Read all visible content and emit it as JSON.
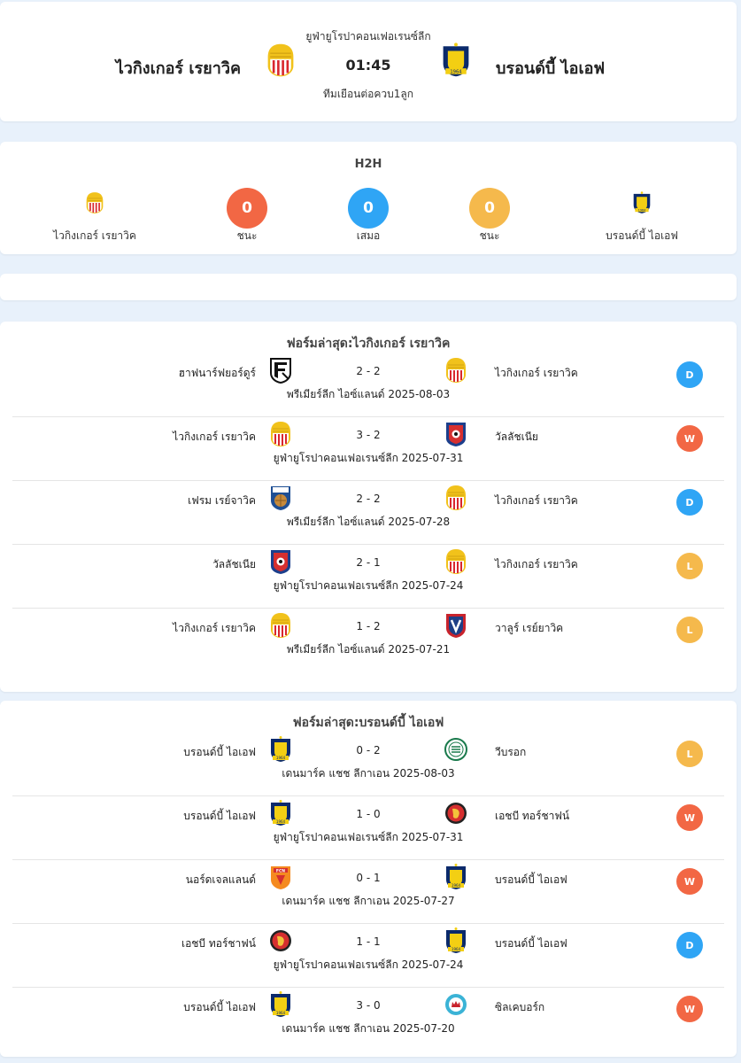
{
  "colors": {
    "win": "#f26744",
    "draw": "#2fa5f5",
    "loss": "#f5b94c",
    "text": "#222222",
    "bg": "#e8f1fb"
  },
  "match": {
    "league": "ยูฟ่ายูโรปาคอนเฟอเรนซ์ลีก",
    "home_team": "ไวกิงเกอร์ เรยาวิค",
    "away_team": "บรอนด์บี้ ไอเอฟ",
    "time": "01:45",
    "note": "ทีมเยือนต่อควบ1ลูก"
  },
  "h2h": {
    "title": "H2H",
    "home_team": "ไวกิงเกอร์ เรยาวิค",
    "away_team": "บรอนด์บี้ ไอเอฟ",
    "home_wins": "0",
    "home_wins_label": "ชนะ",
    "draws": "0",
    "draws_label": "เสมอ",
    "away_wins": "0",
    "away_wins_label": "ชนะ"
  },
  "form_home": {
    "title": "ฟอร์มล่าสุด:ไวกิงเกอร์ เรยาวิค",
    "rows": [
      {
        "home": "ฮาฟนาร์ฟยอร์ดูร์",
        "home_logo": "fh-badge-icon",
        "score": "2 - 2",
        "away": "ไวกิงเกอร์ เรยาวิค",
        "away_logo": "vikingur-badge-icon",
        "meta": "พรีเมียร์ลีก ไอซ์แลนด์ 2025-08-03",
        "result": "D"
      },
      {
        "home": "ไวกิงเกอร์ เรยาวิค",
        "home_logo": "vikingur-badge-icon",
        "score": "3 - 2",
        "away": "วัลลัชเนีย",
        "away_logo": "vllaznia-badge-icon",
        "meta": "ยูฟ่ายูโรปาคอนเฟอเรนซ์ลีก 2025-07-31",
        "result": "W"
      },
      {
        "home": "เฟรม เรย์จาวิค",
        "home_logo": "fram-badge-icon",
        "score": "2 - 2",
        "away": "ไวกิงเกอร์ เรยาวิค",
        "away_logo": "vikingur-badge-icon",
        "meta": "พรีเมียร์ลีก ไอซ์แลนด์ 2025-07-28",
        "result": "D"
      },
      {
        "home": "วัลลัชเนีย",
        "home_logo": "vllaznia-badge-icon",
        "score": "2 - 1",
        "away": "ไวกิงเกอร์ เรยาวิค",
        "away_logo": "vikingur-badge-icon",
        "meta": "ยูฟ่ายูโรปาคอนเฟอเรนซ์ลีก 2025-07-24",
        "result": "L"
      },
      {
        "home": "ไวกิงเกอร์ เรยาวิค",
        "home_logo": "vikingur-badge-icon",
        "score": "1 - 2",
        "away": "วาลูร์ เรย์ยาวิค",
        "away_logo": "valur-badge-icon",
        "meta": "พรีเมียร์ลีก ไอซ์แลนด์ 2025-07-21",
        "result": "L"
      }
    ]
  },
  "form_away": {
    "title": "ฟอร์มล่าสุด:บรอนด์บี้ ไอเอฟ",
    "rows": [
      {
        "home": "บรอนด์บี้ ไอเอฟ",
        "home_logo": "brondby-badge-icon",
        "score": "0 - 2",
        "away": "วีบรอก",
        "away_logo": "viborg-badge-icon",
        "meta": "เดนมาร์ค แชช ลีกาเอน 2025-08-03",
        "result": "L"
      },
      {
        "home": "บรอนด์บี้ ไอเอฟ",
        "home_logo": "brondby-badge-icon",
        "score": "1 - 0",
        "away": "เอชบี ทอร์ชาฟน์",
        "away_logo": "hb-badge-icon",
        "meta": "ยูฟ่ายูโรปาคอนเฟอเรนซ์ลีก 2025-07-31",
        "result": "W"
      },
      {
        "home": "นอร์ดเจลแลนด์",
        "home_logo": "nordsjaelland-badge-icon",
        "score": "0 - 1",
        "away": "บรอนด์บี้ ไอเอฟ",
        "away_logo": "brondby-badge-icon",
        "meta": "เดนมาร์ค แชช ลีกาเอน 2025-07-27",
        "result": "W"
      },
      {
        "home": "เอชบี ทอร์ชาฟน์",
        "home_logo": "hb-badge-icon",
        "score": "1 - 1",
        "away": "บรอนด์บี้ ไอเอฟ",
        "away_logo": "brondby-badge-icon",
        "meta": "ยูฟ่ายูโรปาคอนเฟอเรนซ์ลีก 2025-07-24",
        "result": "D"
      },
      {
        "home": "บรอนด์บี้ ไอเอฟ",
        "home_logo": "brondby-badge-icon",
        "score": "3 - 0",
        "away": "ซิลเคบอร์ก",
        "away_logo": "silkeborg-badge-icon",
        "meta": "เดนมาร์ค แชช ลีกาเอน 2025-07-20",
        "result": "W"
      }
    ]
  }
}
